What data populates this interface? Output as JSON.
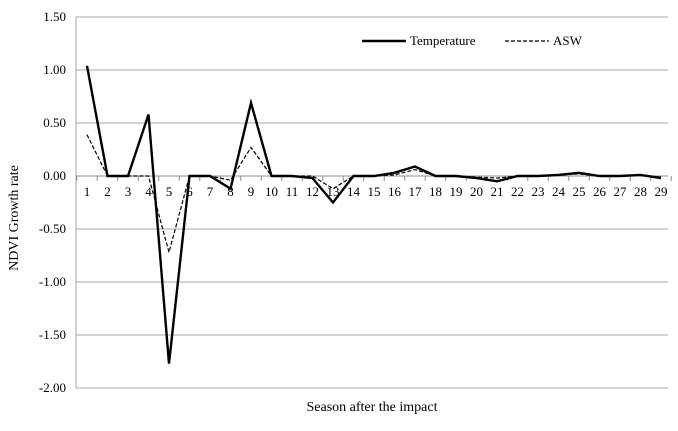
{
  "chart_data": {
    "type": "line",
    "title": "",
    "xlabel": "Season after the impact",
    "ylabel": "NDVI Growth rate",
    "ylim": [
      -2.0,
      1.5
    ],
    "ytick_step": 0.5,
    "ytick_labels": [
      "1.50",
      "1.00",
      "0.50",
      "0.00",
      "-0.50",
      "-1.00",
      "-1.50",
      "-2.00"
    ],
    "grid": true,
    "legend_position": "top-right",
    "categories": [
      "1",
      "2",
      "3",
      "4",
      "5",
      "6",
      "7",
      "8",
      "9",
      "10",
      "11",
      "12",
      "13",
      "14",
      "15",
      "16",
      "17",
      "18",
      "19",
      "20",
      "21",
      "22",
      "23",
      "24",
      "25",
      "26",
      "27",
      "28",
      "29"
    ],
    "series": [
      {
        "name": "Temperature",
        "style": "solid",
        "color": "#000000",
        "values": [
          1.04,
          0.0,
          0.0,
          0.58,
          -1.77,
          0.0,
          0.0,
          -0.12,
          0.69,
          0.0,
          0.0,
          -0.02,
          -0.25,
          0.0,
          0.0,
          0.03,
          0.09,
          0.0,
          0.0,
          -0.02,
          -0.05,
          0.0,
          0.0,
          0.01,
          0.03,
          0.0,
          0.0,
          0.01,
          -0.02
        ]
      },
      {
        "name": "ASW",
        "style": "dashed",
        "color": "#000000",
        "values": [
          0.39,
          0.0,
          0.0,
          0.0,
          -0.72,
          0.0,
          0.0,
          -0.04,
          0.27,
          0.0,
          0.0,
          0.0,
          -0.12,
          0.0,
          0.0,
          0.01,
          0.06,
          0.0,
          0.0,
          -0.01,
          -0.02,
          0.0,
          0.0,
          0.01,
          0.02,
          0.0,
          0.0,
          0.01,
          -0.01
        ]
      }
    ]
  }
}
